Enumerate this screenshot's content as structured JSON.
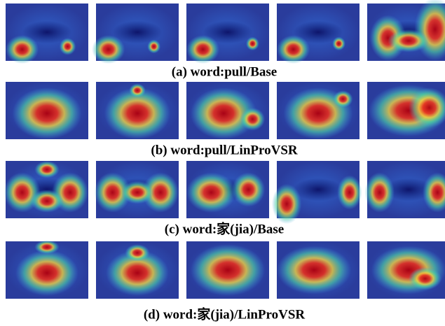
{
  "captions": [
    "(a) word:pull/Base",
    "(b) word:pull/LinProVSR",
    "(c) word:家(jia)/Base",
    "(d) word:家(jia)/LinProVSR"
  ]
}
